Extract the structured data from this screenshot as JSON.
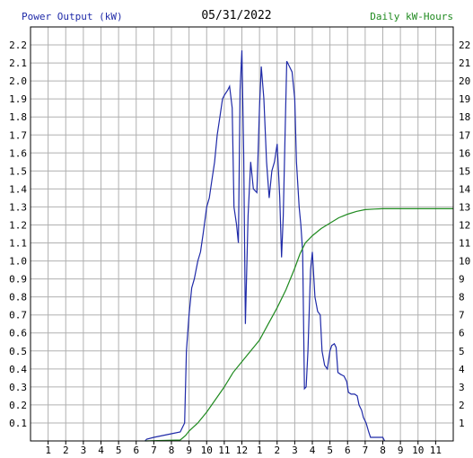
{
  "chart_data": {
    "type": "line",
    "title": "05/31/2022",
    "left_axis_label": "Power Output (kW)",
    "right_axis_label": "Daily kW-Hours",
    "x_ticks": [
      "1",
      "2",
      "3",
      "4",
      "5",
      "6",
      "7",
      "8",
      "9",
      "10",
      "11",
      "12",
      "1",
      "2",
      "3",
      "4",
      "5",
      "6",
      "7",
      "8",
      "9",
      "10",
      "11"
    ],
    "x_range_hours": [
      0,
      24
    ],
    "left_ylim": [
      0,
      2.3
    ],
    "left_y_ticks": [
      "0.1",
      "0.2",
      "0.3",
      "0.4",
      "0.5",
      "0.6",
      "0.7",
      "0.8",
      "0.9",
      "1.0",
      "1.1",
      "1.2",
      "1.3",
      "1.4",
      "1.5",
      "1.6",
      "1.7",
      "1.8",
      "1.9",
      "2.0",
      "2.1",
      "2.2"
    ],
    "right_ylim": [
      0,
      23
    ],
    "right_y_ticks": [
      "1",
      "2",
      "3",
      "4",
      "5",
      "6",
      "7",
      "8",
      "9",
      "10",
      "11",
      "12",
      "13",
      "14",
      "15",
      "16",
      "17",
      "18",
      "19",
      "20",
      "21",
      "22"
    ],
    "grid": true,
    "colors": {
      "power": "#1f2aa8",
      "energy": "#1f8a1f",
      "grid": "#b0b0b0",
      "axis": "#000000"
    },
    "series": [
      {
        "name": "Power Output (kW)",
        "axis": "left",
        "points": [
          [
            6.5,
            0.0
          ],
          [
            6.6,
            0.01
          ],
          [
            7.0,
            0.02
          ],
          [
            7.5,
            0.03
          ],
          [
            8.0,
            0.04
          ],
          [
            8.5,
            0.05
          ],
          [
            8.75,
            0.1
          ],
          [
            8.85,
            0.5
          ],
          [
            9.0,
            0.7
          ],
          [
            9.15,
            0.85
          ],
          [
            9.3,
            0.9
          ],
          [
            9.5,
            1.0
          ],
          [
            9.65,
            1.05
          ],
          [
            9.8,
            1.15
          ],
          [
            10.0,
            1.3
          ],
          [
            10.15,
            1.35
          ],
          [
            10.3,
            1.45
          ],
          [
            10.45,
            1.55
          ],
          [
            10.6,
            1.7
          ],
          [
            10.75,
            1.8
          ],
          [
            10.9,
            1.9
          ],
          [
            11.0,
            1.92
          ],
          [
            11.2,
            1.95
          ],
          [
            11.3,
            1.97
          ],
          [
            11.45,
            1.85
          ],
          [
            11.55,
            1.3
          ],
          [
            11.7,
            1.2
          ],
          [
            11.8,
            1.1
          ],
          [
            11.9,
            1.95
          ],
          [
            12.0,
            2.17
          ],
          [
            12.1,
            1.6
          ],
          [
            12.2,
            0.65
          ],
          [
            12.35,
            1.25
          ],
          [
            12.5,
            1.55
          ],
          [
            12.65,
            1.4
          ],
          [
            12.85,
            1.38
          ],
          [
            13.0,
            1.85
          ],
          [
            13.1,
            2.08
          ],
          [
            13.25,
            1.9
          ],
          [
            13.4,
            1.55
          ],
          [
            13.55,
            1.35
          ],
          [
            13.7,
            1.5
          ],
          [
            13.85,
            1.55
          ],
          [
            14.0,
            1.65
          ],
          [
            14.15,
            1.35
          ],
          [
            14.25,
            1.02
          ],
          [
            14.35,
            1.25
          ],
          [
            14.45,
            1.7
          ],
          [
            14.55,
            2.11
          ],
          [
            14.7,
            2.08
          ],
          [
            14.85,
            2.05
          ],
          [
            15.0,
            1.9
          ],
          [
            15.1,
            1.55
          ],
          [
            15.25,
            1.3
          ],
          [
            15.35,
            1.2
          ],
          [
            15.45,
            1.05
          ],
          [
            15.55,
            0.29
          ],
          [
            15.65,
            0.3
          ],
          [
            15.75,
            0.5
          ],
          [
            15.9,
            0.95
          ],
          [
            16.0,
            1.05
          ],
          [
            16.15,
            0.8
          ],
          [
            16.3,
            0.72
          ],
          [
            16.45,
            0.7
          ],
          [
            16.55,
            0.5
          ],
          [
            16.7,
            0.42
          ],
          [
            16.85,
            0.4
          ],
          [
            17.0,
            0.5
          ],
          [
            17.1,
            0.53
          ],
          [
            17.25,
            0.54
          ],
          [
            17.35,
            0.52
          ],
          [
            17.45,
            0.38
          ],
          [
            17.6,
            0.37
          ],
          [
            17.8,
            0.36
          ],
          [
            17.95,
            0.33
          ],
          [
            18.05,
            0.27
          ],
          [
            18.2,
            0.26
          ],
          [
            18.4,
            0.26
          ],
          [
            18.55,
            0.25
          ],
          [
            18.65,
            0.2
          ],
          [
            18.8,
            0.17
          ],
          [
            18.9,
            0.13
          ],
          [
            19.05,
            0.1
          ],
          [
            19.2,
            0.05
          ],
          [
            19.3,
            0.02
          ],
          [
            19.6,
            0.02
          ],
          [
            20.0,
            0.02
          ],
          [
            20.1,
            0.0
          ]
        ]
      },
      {
        "name": "Daily kW-Hours",
        "axis": "right",
        "points": [
          [
            6.5,
            0.0
          ],
          [
            8.5,
            0.05
          ],
          [
            8.8,
            0.3
          ],
          [
            9.0,
            0.55
          ],
          [
            9.5,
            1.0
          ],
          [
            10.0,
            1.6
          ],
          [
            10.5,
            2.3
          ],
          [
            11.0,
            3.0
          ],
          [
            11.5,
            3.8
          ],
          [
            12.0,
            4.4
          ],
          [
            12.5,
            5.0
          ],
          [
            13.0,
            5.6
          ],
          [
            13.5,
            6.5
          ],
          [
            14.0,
            7.4
          ],
          [
            14.5,
            8.4
          ],
          [
            15.0,
            9.6
          ],
          [
            15.3,
            10.4
          ],
          [
            15.6,
            11.0
          ],
          [
            16.0,
            11.4
          ],
          [
            16.5,
            11.8
          ],
          [
            17.0,
            12.1
          ],
          [
            17.5,
            12.4
          ],
          [
            18.0,
            12.6
          ],
          [
            18.5,
            12.75
          ],
          [
            19.0,
            12.85
          ],
          [
            19.5,
            12.88
          ],
          [
            20.0,
            12.9
          ],
          [
            21.0,
            12.9
          ],
          [
            22.0,
            12.9
          ],
          [
            23.0,
            12.9
          ],
          [
            24.0,
            12.9
          ]
        ]
      }
    ]
  }
}
